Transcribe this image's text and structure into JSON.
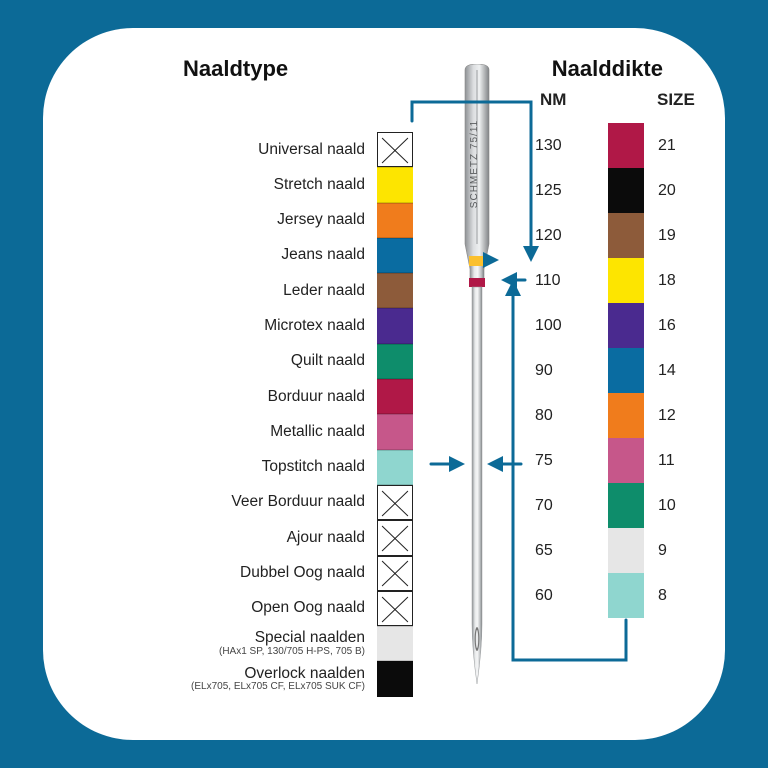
{
  "headings": {
    "left": "Naaldtype",
    "right": "Naalddikte",
    "nm": "NM",
    "size": "SIZE"
  },
  "needle_types": [
    {
      "label": "Universal naald",
      "color": null,
      "crossed": true
    },
    {
      "label": "Stretch naald",
      "color": "#fde500",
      "crossed": false
    },
    {
      "label": "Jersey naald",
      "color": "#f07c1c",
      "crossed": false
    },
    {
      "label": "Jeans naald",
      "color": "#0a6ca1",
      "crossed": false
    },
    {
      "label": "Leder naald",
      "color": "#8d5b3a",
      "crossed": false
    },
    {
      "label": "Microtex naald",
      "color": "#4a2a8f",
      "crossed": false
    },
    {
      "label": "Quilt naald",
      "color": "#0e8d6b",
      "crossed": false
    },
    {
      "label": "Borduur naald",
      "color": "#b01847",
      "crossed": false
    },
    {
      "label": "Metallic naald",
      "color": "#c6578a",
      "crossed": false
    },
    {
      "label": "Topstitch naald",
      "color": "#8fd6cf",
      "crossed": false
    },
    {
      "label": "Veer Borduur naald",
      "color": null,
      "crossed": true
    },
    {
      "label": "Ajour naald",
      "color": null,
      "crossed": true
    },
    {
      "label": "Dubbel Oog naald",
      "color": null,
      "crossed": true
    },
    {
      "label": "Open Oog naald",
      "color": null,
      "crossed": true
    },
    {
      "label": "Special naalden",
      "sublabel": "(HAx1 SP, 130/705 H-PS, 705 B)",
      "color": "#e6e6e6",
      "crossed": false
    },
    {
      "label": "Overlock naalden",
      "sublabel": "(ELx705, ELx705 CF, ELx705 SUK CF)",
      "color": "#0b0b0b",
      "crossed": false
    }
  ],
  "sizes": [
    {
      "nm": "130",
      "size": "21",
      "color": "#b01847"
    },
    {
      "nm": "125",
      "size": "20",
      "color": "#0b0b0b"
    },
    {
      "nm": "120",
      "size": "19",
      "color": "#8d5b3a"
    },
    {
      "nm": "110",
      "size": "18",
      "color": "#fde500"
    },
    {
      "nm": "100",
      "size": "16",
      "color": "#4a2a8f"
    },
    {
      "nm": "90",
      "size": "14",
      "color": "#0a6ca1"
    },
    {
      "nm": "80",
      "size": "12",
      "color": "#f07c1c"
    },
    {
      "nm": "75",
      "size": "11",
      "color": "#c6578a"
    },
    {
      "nm": "70",
      "size": "10",
      "color": "#0e8d6b"
    },
    {
      "nm": "65",
      "size": "9",
      "color": "#e6e6e6"
    },
    {
      "nm": "60",
      "size": "8",
      "color": "#8fd6cf"
    }
  ],
  "needle": {
    "branding": "SCHMETZ  75/11",
    "shank_fill": "#b9bcbf",
    "steel_fill": "#cfd2d4",
    "band1_color": "#fbc02d",
    "band2_color": "#b01847",
    "connector_color": "#0c6a97"
  }
}
